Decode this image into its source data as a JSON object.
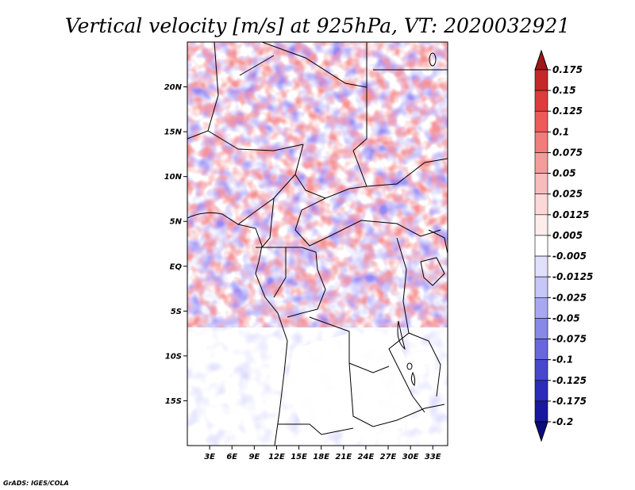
{
  "title": "Vertical velocity [m/s] at 925hPa, VT: 2020032921",
  "credit": "GrADS: IGES/COLA",
  "map": {
    "lon_range": [
      0,
      35
    ],
    "lat_range": [
      -20,
      25
    ],
    "lat_ticks": [
      {
        "value": 20,
        "label": "20N"
      },
      {
        "value": 15,
        "label": "15N"
      },
      {
        "value": 10,
        "label": "10N"
      },
      {
        "value": 5,
        "label": "5N"
      },
      {
        "value": 0,
        "label": "EQ"
      },
      {
        "value": -5,
        "label": "5S"
      },
      {
        "value": -10,
        "label": "10S"
      },
      {
        "value": -15,
        "label": "15S"
      }
    ],
    "lon_ticks": [
      {
        "value": 3,
        "label": "3E"
      },
      {
        "value": 6,
        "label": "6E"
      },
      {
        "value": 9,
        "label": "9E"
      },
      {
        "value": 12,
        "label": "12E"
      },
      {
        "value": 15,
        "label": "15E"
      },
      {
        "value": 18,
        "label": "18E"
      },
      {
        "value": 21,
        "label": "21E"
      },
      {
        "value": 24,
        "label": "24E"
      },
      {
        "value": 27,
        "label": "27E"
      },
      {
        "value": 30,
        "label": "30E"
      },
      {
        "value": 33,
        "label": "33E"
      }
    ]
  },
  "colorbar": {
    "labels": [
      "0.175",
      "0.15",
      "0.125",
      "0.1",
      "0.075",
      "0.05",
      "0.025",
      "0.0125",
      "0.005",
      "-0.005",
      "-0.0125",
      "-0.025",
      "-0.05",
      "-0.075",
      "-0.1",
      "-0.125",
      "-0.175",
      "-0.2"
    ],
    "colors": [
      "#a01818",
      "#c42828",
      "#dc3c3c",
      "#ec5a5a",
      "#f07c7c",
      "#f49c9c",
      "#f8bcbc",
      "#fcd8d8",
      "#fdecec",
      "#ffffff",
      "#e0e0fc",
      "#c6c6f8",
      "#a8a8f2",
      "#8888e8",
      "#6868dc",
      "#4848cc",
      "#2c2cb8",
      "#18189c",
      "#0c0c80"
    ]
  }
}
